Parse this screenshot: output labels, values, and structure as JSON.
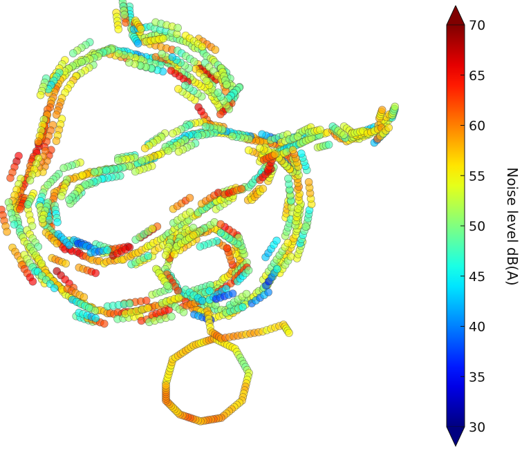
{
  "chart_data": {
    "type": "scatter",
    "title": "",
    "axes_visible": false,
    "colormap": "jet",
    "marker_alpha": 0.65,
    "colorbar": {
      "label": "Noise level dB(A)",
      "range": [
        30,
        70
      ],
      "extend": "both",
      "ticks": [
        30,
        35,
        40,
        45,
        50,
        55,
        60,
        65,
        70
      ],
      "tick_labels": [
        "30",
        "35",
        "40",
        "45",
        "50",
        "55",
        "60",
        "65",
        "70"
      ]
    },
    "series": [
      {
        "track_points": [
          [
            186,
            10
          ],
          [
            190,
            40
          ],
          [
            200,
            55
          ],
          [
            230,
            50
          ],
          [
            270,
            60
          ],
          [
            300,
            80
          ],
          [
            330,
            110
          ],
          [
            340,
            140
          ],
          [
            320,
            160
          ],
          [
            300,
            130
          ],
          [
            270,
            110
          ],
          [
            240,
            90
          ],
          [
            200,
            80
          ],
          [
            160,
            70
          ],
          [
            130,
            80
          ],
          [
            100,
            100
          ],
          [
            80,
            130
          ],
          [
            70,
            160
          ],
          [
            60,
            200
          ],
          [
            45,
            240
          ],
          [
            30,
            280
          ],
          [
            20,
            300
          ],
          [
            30,
            340
          ],
          [
            50,
            370
          ],
          [
            70,
            400
          ],
          [
            100,
            430
          ],
          [
            130,
            445
          ],
          [
            160,
            455
          ],
          [
            200,
            450
          ],
          [
            240,
            440
          ],
          [
            270,
            430
          ],
          [
            300,
            420
          ],
          [
            330,
            400
          ],
          [
            350,
            380
          ],
          [
            340,
            350
          ],
          [
            310,
            330
          ],
          [
            280,
            340
          ],
          [
            250,
            360
          ],
          [
            240,
            390
          ],
          [
            260,
            420
          ],
          [
            290,
            440
          ],
          [
            320,
            450
          ],
          [
            350,
            440
          ],
          [
            380,
            420
          ],
          [
            400,
            390
          ],
          [
            420,
            360
          ],
          [
            430,
            330
          ],
          [
            435,
            300
          ],
          [
            430,
            260
          ],
          [
            420,
            230
          ],
          [
            400,
            210
          ],
          [
            370,
            200
          ],
          [
            340,
            195
          ],
          [
            310,
            190
          ],
          [
            280,
            195
          ],
          [
            250,
            210
          ],
          [
            220,
            230
          ],
          [
            190,
            240
          ],
          [
            160,
            245
          ],
          [
            130,
            250
          ],
          [
            100,
            260
          ],
          [
            80,
            280
          ],
          [
            70,
            310
          ],
          [
            75,
            340
          ],
          [
            95,
            360
          ],
          [
            120,
            370
          ],
          [
            150,
            380
          ],
          [
            180,
            375
          ],
          [
            210,
            360
          ],
          [
            240,
            340
          ],
          [
            270,
            320
          ],
          [
            300,
            300
          ],
          [
            330,
            280
          ],
          [
            360,
            270
          ],
          [
            380,
            250
          ],
          [
            390,
            225
          ],
          [
            410,
            215
          ],
          [
            440,
            205
          ],
          [
            460,
            195
          ],
          [
            480,
            190
          ],
          [
            500,
            205
          ],
          [
            520,
            200
          ],
          [
            545,
            190
          ],
          [
            565,
            170
          ],
          [
            570,
            155
          ]
        ]
      }
    ]
  }
}
